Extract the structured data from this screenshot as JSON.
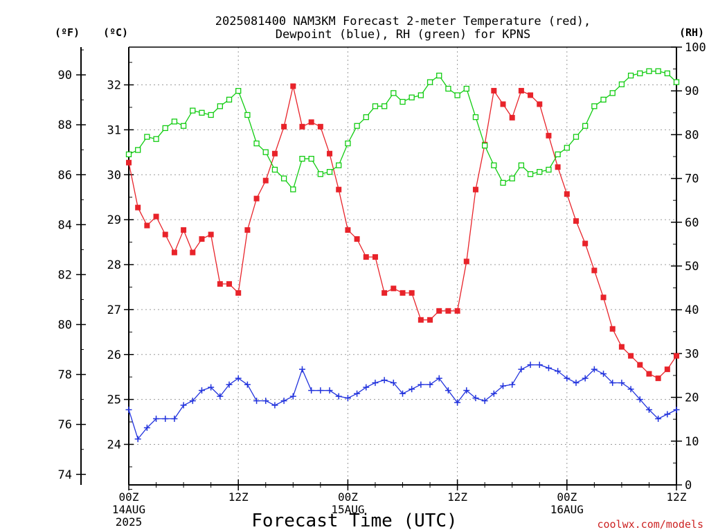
{
  "chart_data": {
    "type": "line",
    "title_line1": "2025081400 NAM3KM Forecast 2-meter Temperature (red),",
    "title_line2": "Dewpoint (blue), RH (green) for KPNS",
    "xlabel": "Forecast Time (UTC)",
    "credit": "coolwx.com/models",
    "unit_left_f": "(ºF)",
    "unit_left_c": "(ºC)",
    "unit_right": "(RH)",
    "x_ticks": [
      {
        "h": 0,
        "label": "00Z",
        "sub1": "14AUG",
        "sub2": "2025"
      },
      {
        "h": 12,
        "label": "12Z",
        "sub1": "",
        "sub2": ""
      },
      {
        "h": 24,
        "label": "00Z",
        "sub1": "15AUG",
        "sub2": ""
      },
      {
        "h": 36,
        "label": "12Z",
        "sub1": "",
        "sub2": ""
      },
      {
        "h": 48,
        "label": "00Z",
        "sub1": "16AUG",
        "sub2": ""
      },
      {
        "h": 60,
        "label": "12Z",
        "sub1": "",
        "sub2": ""
      }
    ],
    "xlim": [
      0,
      60
    ],
    "ylim_c": [
      23.0,
      32.85
    ],
    "celsius_ticks": [
      24,
      25,
      26,
      27,
      28,
      29,
      30,
      31,
      32
    ],
    "fahrenheit_ticks": [
      74,
      76,
      78,
      80,
      82,
      84,
      86,
      88,
      90
    ],
    "ylim_rh": [
      0,
      100
    ],
    "rh_ticks": [
      0,
      10,
      20,
      30,
      40,
      50,
      60,
      70,
      80,
      90,
      100
    ],
    "colors": {
      "temperature": "#e8232a",
      "dewpoint": "#2233dd",
      "rh": "#11cc11"
    },
    "series": [
      {
        "name": "Temperature",
        "unit": "C",
        "values": [
          30.27,
          29.27,
          28.87,
          29.07,
          28.67,
          28.27,
          28.77,
          28.27,
          28.57,
          28.67,
          27.57,
          27.57,
          27.37,
          28.77,
          29.47,
          29.87,
          30.47,
          31.07,
          31.97,
          31.07,
          31.17,
          31.07,
          30.47,
          29.67,
          28.77,
          28.57,
          28.17,
          28.17,
          27.37,
          27.47,
          27.37,
          27.37,
          26.77,
          26.77,
          26.97,
          26.97,
          26.97,
          28.07,
          29.67,
          30.67,
          31.87,
          31.57,
          31.27,
          31.87,
          31.77,
          31.57,
          30.87,
          30.17,
          29.57,
          28.97,
          28.47,
          27.87,
          27.27,
          26.57,
          26.17,
          25.97,
          25.77,
          25.57,
          25.47,
          25.67,
          25.97
        ]
      },
      {
        "name": "Dewpoint",
        "unit": "C",
        "values": [
          24.77,
          24.12,
          24.37,
          24.57,
          24.57,
          24.57,
          24.87,
          24.97,
          25.2,
          25.27,
          25.07,
          25.33,
          25.47,
          25.33,
          24.97,
          24.97,
          24.87,
          24.97,
          25.07,
          25.67,
          25.2,
          25.2,
          25.2,
          25.07,
          25.03,
          25.13,
          25.27,
          25.37,
          25.43,
          25.37,
          25.13,
          25.23,
          25.33,
          25.33,
          25.47,
          25.2,
          24.93,
          25.2,
          25.03,
          24.97,
          25.13,
          25.3,
          25.33,
          25.67,
          25.77,
          25.77,
          25.7,
          25.63,
          25.47,
          25.37,
          25.47,
          25.67,
          25.57,
          25.37,
          25.37,
          25.23,
          25.0,
          24.77,
          24.57,
          24.67,
          24.77
        ]
      },
      {
        "name": "RH",
        "unit": "%",
        "values": [
          75.5,
          76.5,
          79.5,
          79.0,
          81.5,
          83.0,
          82.0,
          85.5,
          85.0,
          84.5,
          86.5,
          88.0,
          90.0,
          84.5,
          78.0,
          76.0,
          72.0,
          70.0,
          67.5,
          74.5,
          74.5,
          71.0,
          71.5,
          73.0,
          78.0,
          82.0,
          84.0,
          86.5,
          86.5,
          89.5,
          87.5,
          88.5,
          89.0,
          92.0,
          93.5,
          90.5,
          89.0,
          90.5,
          84.0,
          77.5,
          73.0,
          69.0,
          70.0,
          73.0,
          71.0,
          71.5,
          72.0,
          75.5,
          77.0,
          79.5,
          82.0,
          86.5,
          88.0,
          89.5,
          91.5,
          93.5,
          94.0,
          94.5,
          94.5,
          94.0,
          92.0
        ]
      }
    ]
  }
}
